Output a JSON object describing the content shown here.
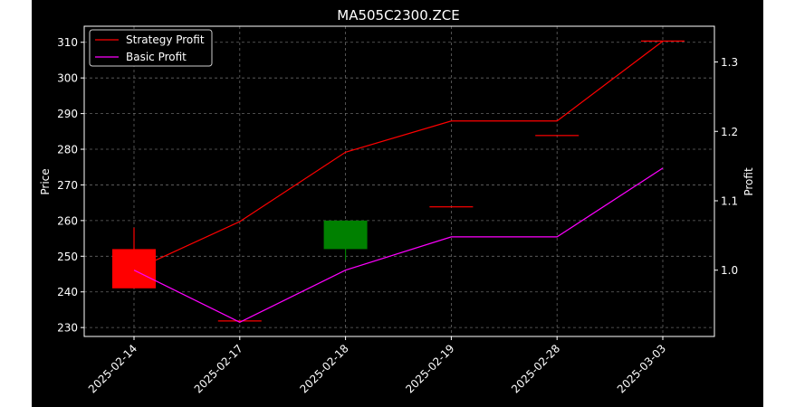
{
  "chart_data": {
    "type": "candlestick",
    "title": "MA505C2300.ZCE",
    "xlabel": "",
    "ylabel": "Price",
    "y2label": "Profit",
    "categories": [
      "2025-02-14",
      "2025-02-17",
      "2025-02-18",
      "2025-02-19",
      "2025-02-28",
      "2025-03-03"
    ],
    "ylim": [
      227.5,
      314.5
    ],
    "y2lim": [
      0.9045,
      1.3515
    ],
    "yticks": [
      230,
      240,
      250,
      260,
      270,
      280,
      290,
      300,
      310
    ],
    "y2ticks": [
      1.0,
      1.1,
      1.2,
      1.3
    ],
    "grid": true,
    "legend_position": "top-left",
    "candles": [
      {
        "date": "2025-02-14",
        "open": 252,
        "high": 258,
        "low": 241,
        "close": 241,
        "direction": "down"
      },
      {
        "date": "2025-02-17",
        "open": 232,
        "high": 232,
        "low": 232,
        "close": 232,
        "direction": "flat"
      },
      {
        "date": "2025-02-18",
        "open": 252,
        "high": 260,
        "low": 249,
        "close": 260,
        "direction": "up"
      },
      {
        "date": "2025-02-19",
        "open": 264,
        "high": 264,
        "low": 264,
        "close": 264,
        "direction": "flat"
      },
      {
        "date": "2025-02-28",
        "open": 284,
        "high": 284,
        "low": 284,
        "close": 284,
        "direction": "flat"
      },
      {
        "date": "2025-03-03",
        "open": 310.5,
        "high": 310.5,
        "low": 310.5,
        "close": 310.5,
        "direction": "flat"
      }
    ],
    "series": [
      {
        "name": "Strategy Profit",
        "axis": "right",
        "color": "#ff0000",
        "values": [
          1.0,
          1.07,
          1.17,
          1.215,
          1.215,
          1.33
        ]
      },
      {
        "name": "Basic Profit",
        "axis": "right",
        "color": "#ff00ff",
        "values": [
          1.0,
          0.925,
          1.0,
          1.048,
          1.048,
          1.147
        ]
      }
    ],
    "colors": {
      "background": "#000000",
      "frame": "#ffffff",
      "grid": "#808080",
      "text": "#ffffff",
      "up_candle": "#008000",
      "down_candle": "#ff0000",
      "outer": "#ffffff"
    }
  }
}
